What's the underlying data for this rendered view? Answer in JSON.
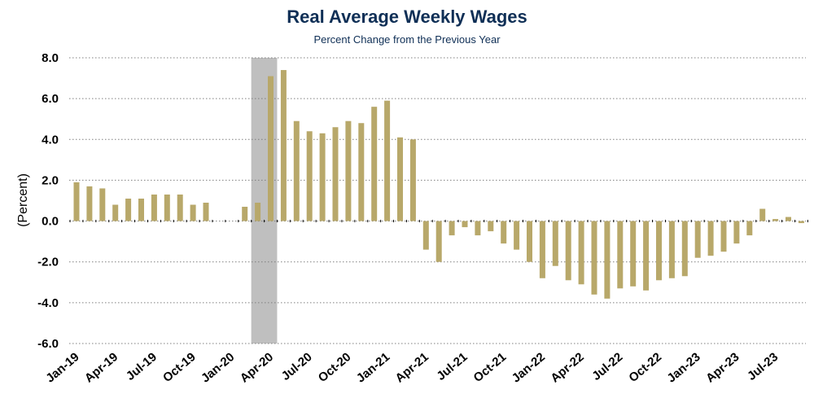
{
  "colors": {
    "title": "#0f2f56",
    "bar": "#b8a86a",
    "recession": "#bfbfbf",
    "grid": "#7f7f7f"
  },
  "chart_data": {
    "type": "bar",
    "title": "Real Average Weekly Wages",
    "subtitle": "Percent Change from the Previous Year",
    "ylabel": "(Percent)",
    "xlabel": "",
    "ylim": [
      -6,
      8
    ],
    "yticks": [
      "8.0",
      "6.0",
      "4.0",
      "2.0",
      "0.0",
      "-2.0",
      "-4.0",
      "-6.0"
    ],
    "grid": true,
    "recession_shading": {
      "start": "Mar-20",
      "end": "Apr-20"
    },
    "x_tick_labels": [
      "Jan-19",
      "Apr-19",
      "Jul-19",
      "Oct-19",
      "Jan-20",
      "Apr-20",
      "Jul-20",
      "Oct-20",
      "Jan-21",
      "Apr-21",
      "Jul-21",
      "Oct-21",
      "Jan-22",
      "Apr-22",
      "Jul-22",
      "Oct-22",
      "Jan-23",
      "Apr-23",
      "Jul-23"
    ],
    "categories": [
      "Jan-19",
      "Feb-19",
      "Mar-19",
      "Apr-19",
      "May-19",
      "Jun-19",
      "Jul-19",
      "Aug-19",
      "Sep-19",
      "Oct-19",
      "Nov-19",
      "Dec-19",
      "Jan-20",
      "Feb-20",
      "Mar-20",
      "Apr-20",
      "May-20",
      "Jun-20",
      "Jul-20",
      "Aug-20",
      "Sep-20",
      "Oct-20",
      "Nov-20",
      "Dec-20",
      "Jan-21",
      "Feb-21",
      "Mar-21",
      "Apr-21",
      "May-21",
      "Jun-21",
      "Jul-21",
      "Aug-21",
      "Sep-21",
      "Oct-21",
      "Nov-21",
      "Dec-21",
      "Jan-22",
      "Feb-22",
      "Mar-22",
      "Apr-22",
      "May-22",
      "Jun-22",
      "Jul-22",
      "Aug-22",
      "Sep-22",
      "Oct-22",
      "Nov-22",
      "Dec-22",
      "Jan-23",
      "Feb-23",
      "Mar-23",
      "Apr-23",
      "May-23",
      "Jun-23",
      "Jul-23",
      "Aug-23",
      "Sep-23"
    ],
    "values": [
      1.9,
      1.7,
      1.6,
      0.8,
      1.1,
      1.1,
      1.3,
      1.3,
      1.3,
      0.8,
      0.9,
      0.0,
      0.0,
      0.7,
      0.9,
      7.1,
      7.4,
      4.9,
      4.4,
      4.3,
      4.6,
      4.9,
      4.8,
      5.6,
      5.9,
      4.1,
      4.0,
      -1.4,
      -2.0,
      -0.7,
      -0.3,
      -0.7,
      -0.5,
      -1.1,
      -1.4,
      -2.0,
      -2.8,
      -2.2,
      -2.9,
      -3.1,
      -3.6,
      -3.8,
      -3.3,
      -3.2,
      -3.4,
      -2.9,
      -2.8,
      -2.7,
      -1.8,
      -1.7,
      -1.5,
      -1.1,
      -0.7,
      0.6,
      0.1,
      0.2,
      -0.1
    ]
  }
}
